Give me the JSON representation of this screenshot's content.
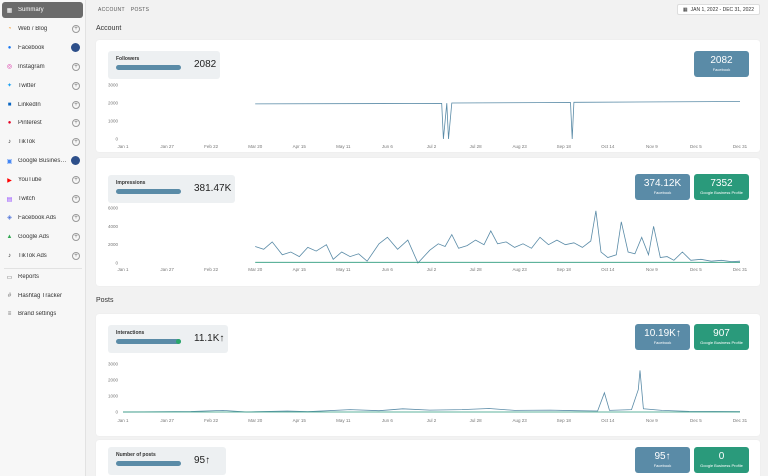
{
  "sidebar": {
    "items": [
      {
        "label": "Summary",
        "icon": "summary-icon",
        "glyph": "▦",
        "color": "#ffffff",
        "active": true,
        "action": "none"
      },
      {
        "label": "Web / Blog",
        "icon": "rss-icon",
        "glyph": "◔",
        "color": "#f39a2c",
        "action": "plus"
      },
      {
        "label": "Facebook",
        "icon": "facebook-icon",
        "glyph": "●",
        "color": "#1877f2",
        "action": "avatar"
      },
      {
        "label": "Instagram",
        "icon": "instagram-icon",
        "glyph": "◎",
        "color": "#d6249f",
        "action": "plus"
      },
      {
        "label": "Twitter",
        "icon": "twitter-icon",
        "glyph": "✦",
        "color": "#1da1f2",
        "action": "plus"
      },
      {
        "label": "LinkedIn",
        "icon": "linkedin-icon",
        "glyph": "■",
        "color": "#0a66c2",
        "action": "plus"
      },
      {
        "label": "Pinterest",
        "icon": "pinterest-icon",
        "glyph": "●",
        "color": "#e60023",
        "action": "plus"
      },
      {
        "label": "TikTok",
        "icon": "tiktok-icon",
        "glyph": "♪",
        "color": "#111111",
        "action": "plus"
      },
      {
        "label": "Google Business ...",
        "icon": "google-business-icon",
        "glyph": "▣",
        "color": "#4285f4",
        "action": "avatar"
      },
      {
        "label": "YouTube",
        "icon": "youtube-icon",
        "glyph": "▶",
        "color": "#ff0000",
        "action": "plus"
      },
      {
        "label": "Twitch",
        "icon": "twitch-icon",
        "glyph": "▤",
        "color": "#9146ff",
        "action": "plus"
      },
      {
        "label": "Facebook Ads",
        "icon": "facebook-ads-icon",
        "glyph": "◈",
        "color": "#4a6fd8",
        "action": "plus"
      },
      {
        "label": "Google Ads",
        "icon": "google-ads-icon",
        "glyph": "▲",
        "color": "#34a853",
        "action": "plus"
      },
      {
        "label": "TikTok Ads",
        "icon": "tiktok-ads-icon",
        "glyph": "♪",
        "color": "#111111",
        "action": "plus"
      }
    ],
    "extra": [
      {
        "label": "Reports",
        "icon": "reports-icon",
        "glyph": "▭",
        "color": "#666666"
      },
      {
        "label": "Hashtag Tracker",
        "icon": "hashtag-icon",
        "glyph": "#",
        "color": "#666666"
      },
      {
        "label": "Brand settings",
        "icon": "sliders-icon",
        "glyph": "≡",
        "color": "#666666"
      }
    ]
  },
  "breadcrumb": [
    "ACCOUNT",
    "POSTS"
  ],
  "date_range": "JAN 1, 2022 - DEC 31, 2022",
  "sections": {
    "account": "Account",
    "posts": "Posts"
  },
  "colors": {
    "facebook": "#5a8ba7",
    "google_business": "#2a9a7b"
  },
  "x_ticks": [
    "Jan 1",
    "Jan 27",
    "Feb 22",
    "Mar 20",
    "Apr 15",
    "May 11",
    "Jun 6",
    "Jul 2",
    "Jul 28",
    "Aug 23",
    "Sep 18",
    "Oct 14",
    "Nov 9",
    "Dec 5",
    "Dec 31"
  ],
  "followers": {
    "label": "Followers",
    "value": "2082",
    "badges": [
      {
        "value": "2082",
        "label": "Facebook",
        "kind": "fb"
      }
    ],
    "y_ticks": [
      "3000",
      "2000",
      "1000",
      "0"
    ]
  },
  "impressions": {
    "label": "Impressions",
    "value": "381.47K",
    "badges": [
      {
        "value": "374.12K",
        "label": "Facebook",
        "kind": "fb"
      },
      {
        "value": "7352",
        "label": "Google Business Profile",
        "kind": "gb"
      }
    ],
    "y_ticks": [
      "6000",
      "4000",
      "2000",
      "0"
    ]
  },
  "interactions": {
    "label": "Interactions",
    "value": "11.1K↑",
    "badges": [
      {
        "value": "10.19K↑",
        "label": "Facebook",
        "kind": "fb"
      },
      {
        "value": "907",
        "label": "Google Business Profile",
        "kind": "gb"
      }
    ],
    "y_ticks": [
      "3000",
      "2000",
      "1000",
      "0"
    ]
  },
  "posts_count": {
    "label": "Number of posts",
    "value": "95↑",
    "badges": [
      {
        "value": "95↑",
        "label": "Facebook",
        "kind": "fb"
      },
      {
        "value": "0",
        "label": "Google Business Profile",
        "kind": "gb"
      }
    ]
  },
  "chart_data": [
    {
      "type": "line",
      "x_domain": [
        "2022-01-01",
        "2022-12-31"
      ],
      "ylim": [
        0,
        3000
      ],
      "series": [
        {
          "color": "#5a8ba7",
          "points": [
            [
              "2022-03-20",
              1950
            ],
            [
              "2022-07-08",
              1980
            ],
            [
              "2022-07-09",
              0
            ],
            [
              "2022-07-11",
              1990
            ],
            [
              "2022-07-12",
              0
            ],
            [
              "2022-07-14",
              2000
            ],
            [
              "2022-09-22",
              2030
            ],
            [
              "2022-09-23",
              0
            ],
            [
              "2022-09-24",
              2040
            ],
            [
              "2022-12-31",
              2082
            ]
          ]
        }
      ]
    },
    {
      "type": "line",
      "x_domain": [
        "2022-01-01",
        "2022-12-31"
      ],
      "ylim": [
        0,
        6000
      ],
      "series": [
        {
          "color": "#5a8ba7",
          "points": [
            [
              "2022-03-20",
              1800
            ],
            [
              "2022-03-25",
              1500
            ],
            [
              "2022-03-30",
              2300
            ],
            [
              "2022-04-05",
              900
            ],
            [
              "2022-04-10",
              1200
            ],
            [
              "2022-04-15",
              700
            ],
            [
              "2022-04-20",
              1700
            ],
            [
              "2022-04-25",
              1300
            ],
            [
              "2022-05-01",
              2000
            ],
            [
              "2022-05-05",
              400
            ],
            [
              "2022-05-10",
              1200
            ],
            [
              "2022-05-15",
              700
            ],
            [
              "2022-05-20",
              1000
            ],
            [
              "2022-05-25",
              200
            ],
            [
              "2022-06-01",
              2100
            ],
            [
              "2022-06-06",
              2800
            ],
            [
              "2022-06-12",
              1500
            ],
            [
              "2022-06-18",
              2500
            ],
            [
              "2022-06-24",
              0
            ],
            [
              "2022-07-01",
              1400
            ],
            [
              "2022-07-06",
              2100
            ],
            [
              "2022-07-10",
              1800
            ],
            [
              "2022-07-14",
              3100
            ],
            [
              "2022-07-18",
              1600
            ],
            [
              "2022-07-23",
              1900
            ],
            [
              "2022-07-28",
              2500
            ],
            [
              "2022-08-02",
              2000
            ],
            [
              "2022-08-06",
              3500
            ],
            [
              "2022-08-10",
              2100
            ],
            [
              "2022-08-15",
              2300
            ],
            [
              "2022-08-20",
              1700
            ],
            [
              "2022-08-25",
              2100
            ],
            [
              "2022-08-30",
              1600
            ],
            [
              "2022-09-04",
              2800
            ],
            [
              "2022-09-09",
              2000
            ],
            [
              "2022-09-14",
              2500
            ],
            [
              "2022-09-19",
              2000
            ],
            [
              "2022-09-24",
              2200
            ],
            [
              "2022-09-29",
              1700
            ],
            [
              "2022-10-04",
              2400
            ],
            [
              "2022-10-07",
              5700
            ],
            [
              "2022-10-10",
              1200
            ],
            [
              "2022-10-14",
              600
            ],
            [
              "2022-10-19",
              900
            ],
            [
              "2022-10-22",
              4500
            ],
            [
              "2022-10-26",
              1200
            ],
            [
              "2022-10-30",
              1000
            ],
            [
              "2022-11-03",
              2800
            ],
            [
              "2022-11-07",
              900
            ],
            [
              "2022-11-10",
              4000
            ],
            [
              "2022-11-14",
              600
            ],
            [
              "2022-11-18",
              700
            ],
            [
              "2022-11-22",
              300
            ],
            [
              "2022-11-27",
              1200
            ],
            [
              "2022-12-02",
              300
            ],
            [
              "2022-12-08",
              400
            ],
            [
              "2022-12-14",
              200
            ],
            [
              "2022-12-20",
              300
            ],
            [
              "2022-12-26",
              150
            ],
            [
              "2022-12-31",
              200
            ]
          ]
        },
        {
          "color": "#2a9a7b",
          "points": [
            [
              "2022-03-20",
              80
            ],
            [
              "2022-12-31",
              80
            ]
          ]
        }
      ]
    },
    {
      "type": "line",
      "x_domain": [
        "2022-01-01",
        "2022-12-31"
      ],
      "ylim": [
        0,
        3000
      ],
      "series": [
        {
          "color": "#5a8ba7",
          "points": [
            [
              "2022-01-01",
              0
            ],
            [
              "2022-02-10",
              30
            ],
            [
              "2022-03-01",
              100
            ],
            [
              "2022-03-15",
              0
            ],
            [
              "2022-04-08",
              60
            ],
            [
              "2022-04-20",
              20
            ],
            [
              "2022-05-15",
              150
            ],
            [
              "2022-06-01",
              80
            ],
            [
              "2022-06-15",
              200
            ],
            [
              "2022-07-01",
              120
            ],
            [
              "2022-07-20",
              150
            ],
            [
              "2022-08-05",
              220
            ],
            [
              "2022-08-20",
              100
            ],
            [
              "2022-09-10",
              120
            ],
            [
              "2022-09-25",
              80
            ],
            [
              "2022-10-08",
              60
            ],
            [
              "2022-10-12",
              1200
            ],
            [
              "2022-10-15",
              100
            ],
            [
              "2022-10-28",
              150
            ],
            [
              "2022-11-01",
              1400
            ],
            [
              "2022-11-02",
              2600
            ],
            [
              "2022-11-04",
              200
            ],
            [
              "2022-11-15",
              100
            ],
            [
              "2022-12-01",
              40
            ],
            [
              "2022-12-31",
              20
            ]
          ]
        },
        {
          "color": "#2a9a7b",
          "points": [
            [
              "2022-01-01",
              0
            ],
            [
              "2022-12-31",
              0
            ]
          ]
        }
      ]
    }
  ]
}
